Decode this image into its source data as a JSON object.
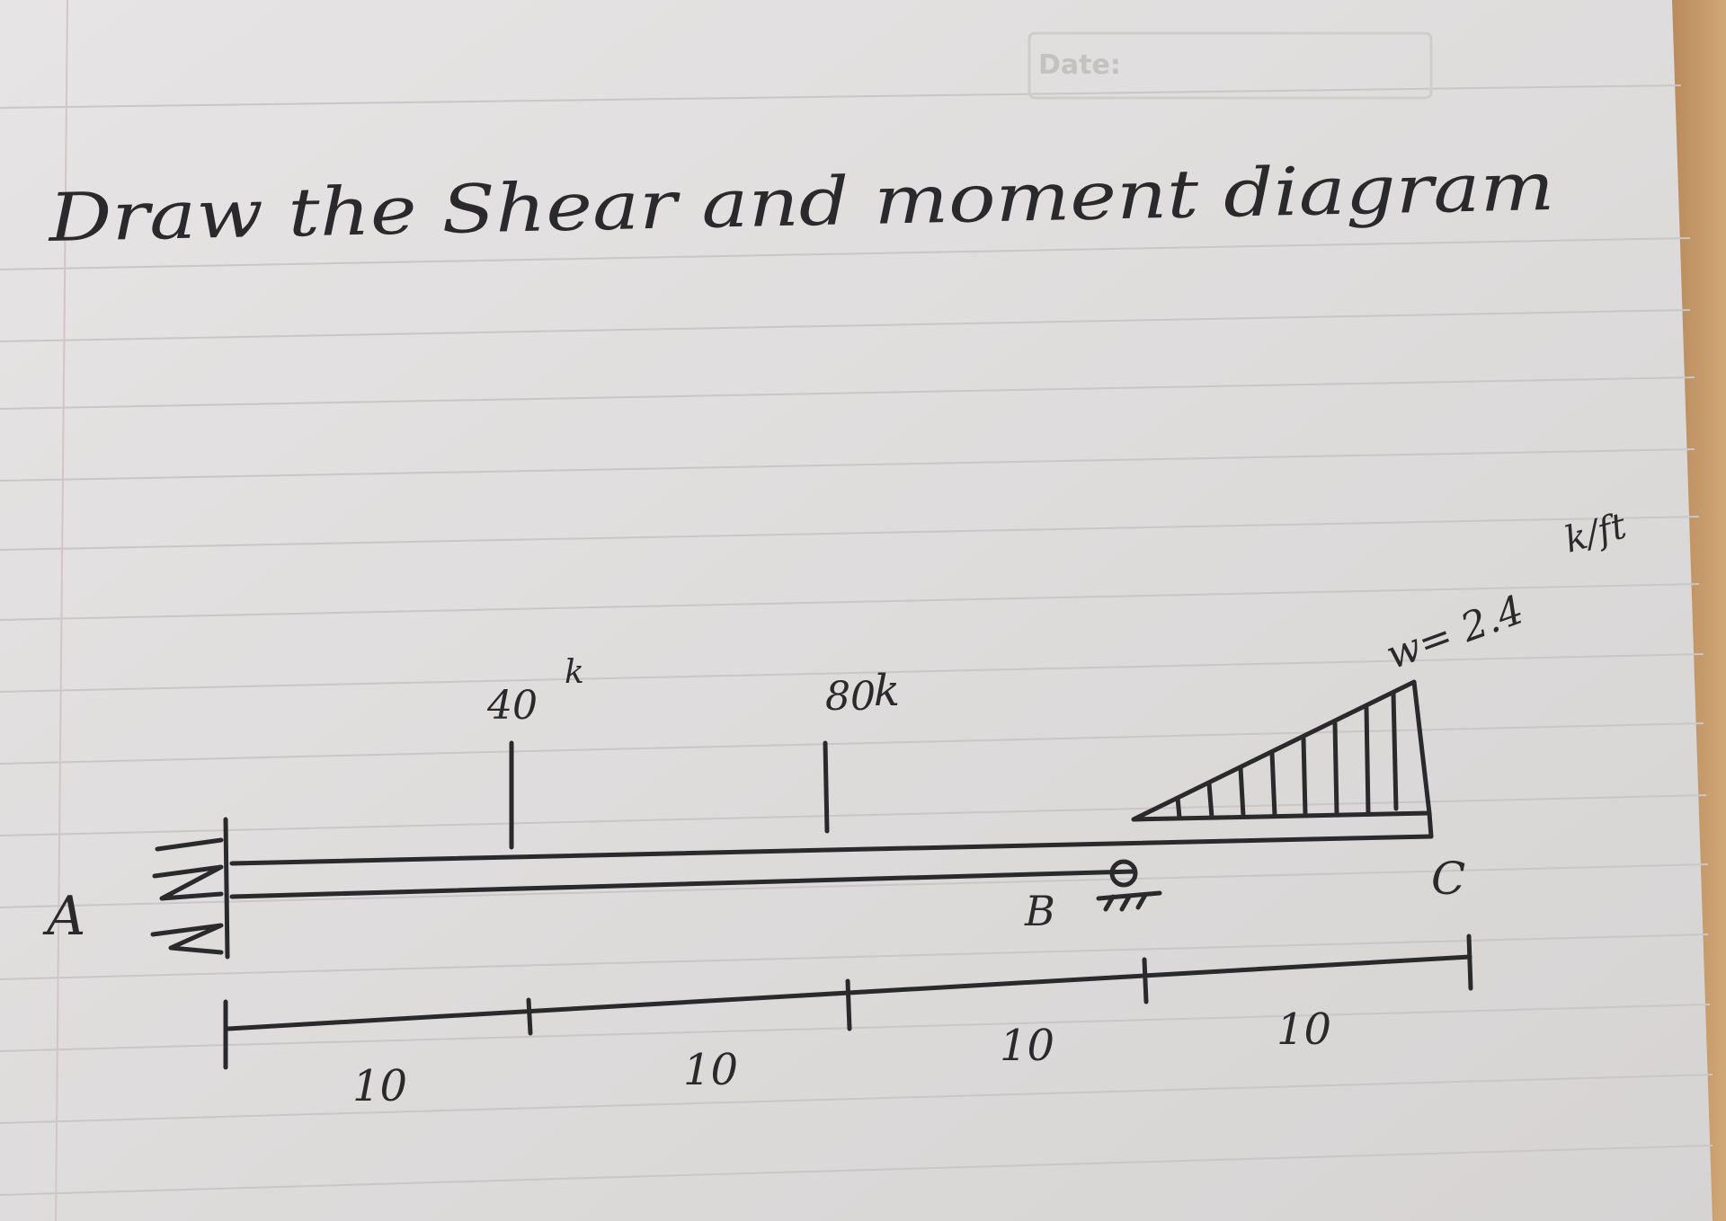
{
  "header": {
    "date_label": "Date:"
  },
  "problem": {
    "title": "Draw the Shear and moment diagram"
  },
  "beam": {
    "left_support_label": "A",
    "roller_support_label": "B",
    "free_end_label": "C",
    "left_support_type": "fixed",
    "roller_support_type": "roller"
  },
  "loads": {
    "point_loads": [
      {
        "value": "40",
        "unit": "k"
      },
      {
        "value": "80",
        "unit": "k"
      }
    ],
    "distributed_load": {
      "label": "w= 2.4",
      "unit": "k/ft",
      "shape": "triangular"
    }
  },
  "dimensions": {
    "segments": [
      "10",
      "10",
      "10",
      "10"
    ]
  },
  "colors": {
    "paper": "#dedcdc",
    "ink": "#2a2a2c",
    "table": "#c49a6c"
  }
}
